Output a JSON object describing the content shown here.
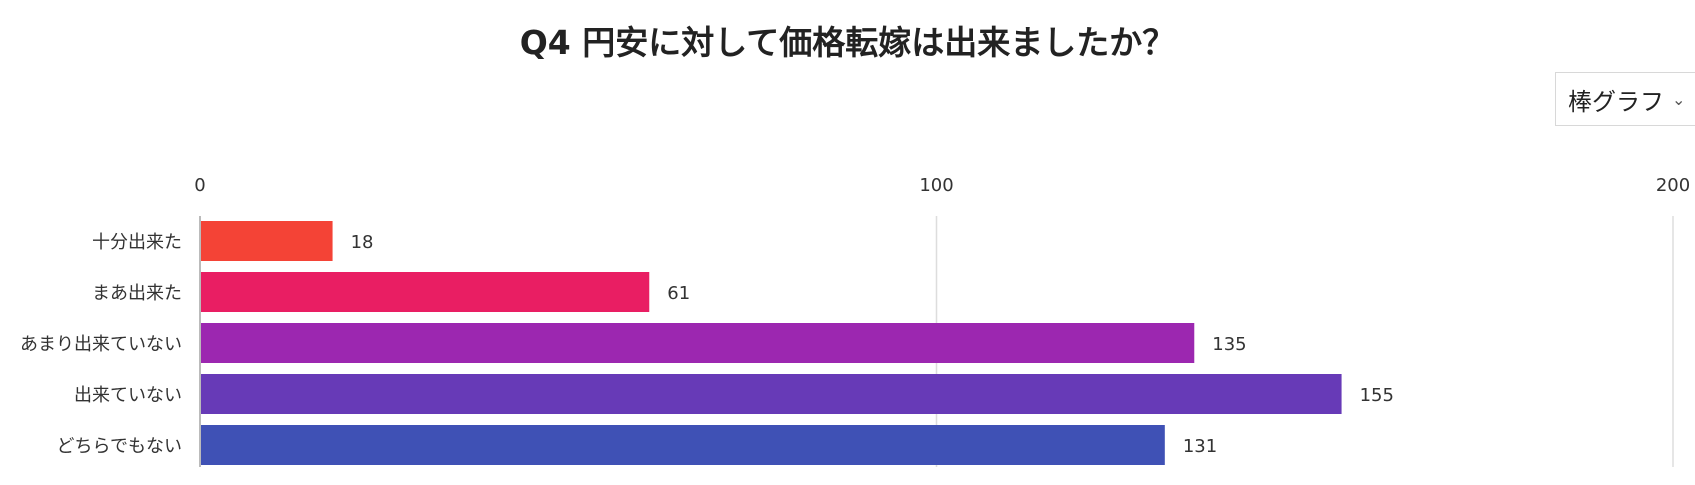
{
  "title": "Q4 円安に対して価格転嫁は出来ましたか？",
  "chart_type_select": {
    "value": "棒グラフ",
    "chevron_icon": "chevron-down-icon"
  },
  "chart_data": {
    "type": "bar",
    "orientation": "horizontal",
    "title": "Q4 円安に対して価格転嫁は出来ましたか？",
    "xlabel": "",
    "ylabel": "",
    "xlim": [
      0,
      200
    ],
    "x_ticks": [
      0,
      100,
      200
    ],
    "grid": true,
    "categories": [
      "十分出来た",
      "まあ出来た",
      "あまり出来ていない",
      "出来ていない",
      "どちらでもない"
    ],
    "values": [
      18,
      61,
      135,
      155,
      131
    ],
    "colors": [
      "#f44336",
      "#e91e63",
      "#9c27b0",
      "#673ab7",
      "#3f51b5"
    ]
  }
}
